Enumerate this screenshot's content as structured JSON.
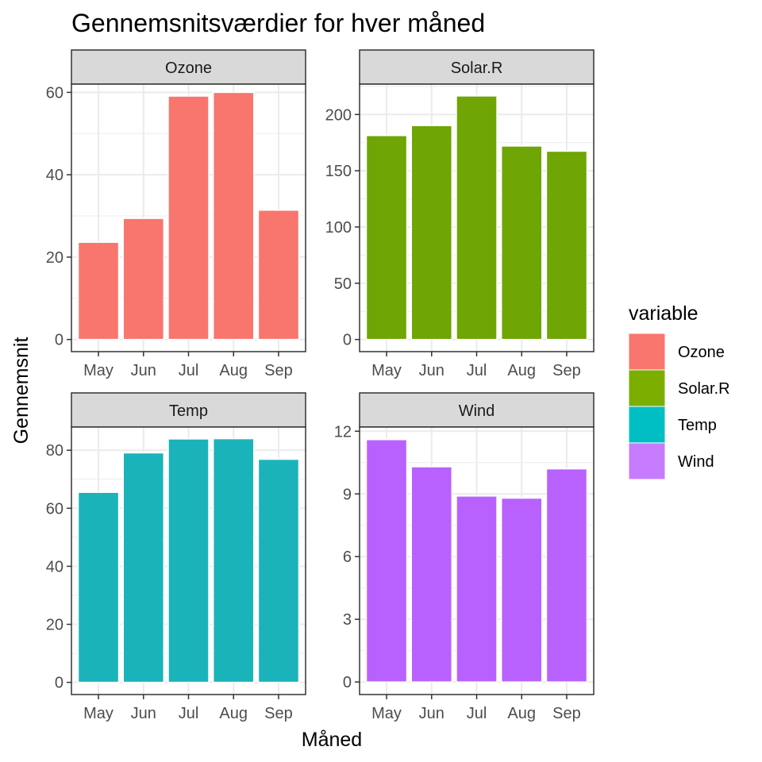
{
  "chart_data": {
    "type": "bar",
    "title": "Gennemsnitsværdier for hver måned",
    "xlabel": "Måned",
    "ylabel": "Gennemsnit",
    "categories": [
      "May",
      "Jun",
      "Jul",
      "Aug",
      "Sep"
    ],
    "grid": true,
    "legend": {
      "title": "variable",
      "placement": "right",
      "entries": [
        {
          "label": "Ozone",
          "color": "#F8766D"
        },
        {
          "label": "Solar.R",
          "color": "#7CAE00"
        },
        {
          "label": "Temp",
          "color": "#00BFC4"
        },
        {
          "label": "Wind",
          "color": "#C77CFF"
        }
      ]
    },
    "facets": [
      {
        "name": "Ozone",
        "color": "#F8766D",
        "values": [
          23.6,
          29.4,
          59.1,
          60.0,
          31.4
        ],
        "ylim": [
          -2.95,
          62.0
        ],
        "yticks": [
          0,
          20,
          40,
          60
        ]
      },
      {
        "name": "Solar.R",
        "color": "#6FA504",
        "values": [
          181.3,
          190.2,
          216.5,
          172.0,
          167.4
        ],
        "ylim": [
          -10.8,
          227.0
        ],
        "yticks": [
          0,
          50,
          100,
          150,
          200
        ]
      },
      {
        "name": "Temp",
        "color": "#1BB3BA",
        "values": [
          65.5,
          79.1,
          83.9,
          84.0,
          76.9
        ],
        "ylim": [
          -4.2,
          88.0
        ],
        "yticks": [
          0,
          20,
          40,
          60,
          80
        ]
      },
      {
        "name": "Wind",
        "color": "#B961FF",
        "values": [
          11.6,
          10.3,
          8.9,
          8.8,
          10.2
        ],
        "ylim": [
          -0.6,
          12.2
        ],
        "yticks": [
          0,
          3,
          6,
          9,
          12
        ]
      }
    ]
  }
}
